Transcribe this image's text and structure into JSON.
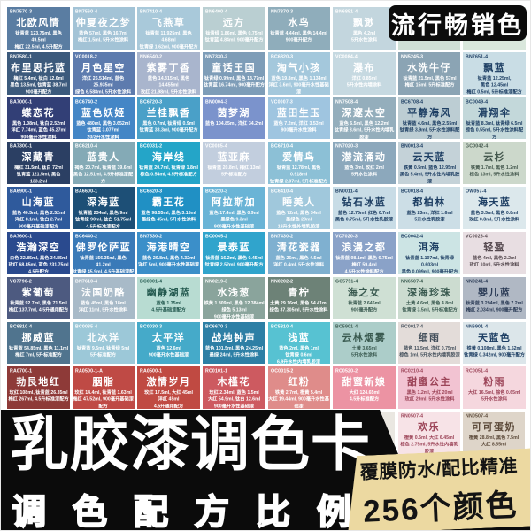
{
  "header_badge": {
    "label": "流行畅销色"
  },
  "footer": {
    "title": "乳胶漆调色卡",
    "subtitle": "调色配方比例",
    "ribbon_line1": "覆膜防水/配比精准",
    "ribbon_line2": "256个颜色"
  },
  "colors": {
    "banner_bg": "#0b0b0b",
    "ribbon_bg": "#ecd9a1",
    "card_bg": "#ffffff"
  },
  "grid_swatches": [
    {
      "code": "BN7570-3",
      "name": "北欧风情",
      "formula": "钛青蓝 123.75ml, 黑色 49.5ml\n梅红 22.5ml, 4.5升配方",
      "bg": "#5a7da2",
      "fg": "#ffffff"
    },
    {
      "code": "BN7560-4",
      "name": "仲夏夜之梦",
      "formula": "蓝色 57ml, 黑色 16.7ml\n梅红 1.5ml, 5升水性涂料",
      "bg": "#a3c3d6",
      "fg": "#ffffff"
    },
    {
      "code": "BN7410-4",
      "name": "飞燕草",
      "formula": "钛青蓝 11.925ml, 黑色 4.68ml\n钛青绿 1.62ml, 900毫升配方",
      "bg": "#a9c9da",
      "fg": "#ffffff"
    },
    {
      "code": "BN6400-4",
      "name": "远方",
      "formula": "钛青绿 1.86ml, 黑色 0.75ml\n钛青蓝 4.84ml, 900毫升配方",
      "bg": "#bacfd2",
      "fg": "#ffffff"
    },
    {
      "code": "NN7370-3",
      "name": "水鸟",
      "formula": "钛青蓝 4.44ml, 黑色 14.4ml\n900毫升配方",
      "bg": "#8fadbb",
      "fg": "#ffffff"
    },
    {
      "code": "BN6851-4",
      "name": "飘渺",
      "formula": "黑色 4.2ml\n5升水性涂料",
      "bg": "#c3d6de",
      "fg": "#ffffff"
    },
    {
      "code": "",
      "name": "",
      "formula": "5升水性涂料",
      "bg": "#cfe0d6",
      "fg": "#3a5a50",
      "push_bottom": true
    },
    {
      "code": "",
      "name": "",
      "formula": "钛青绿 10.25ml,\n900毫升基础漆配方",
      "bg": "#d9e7dc",
      "fg": "#3a5a50",
      "push_bottom": true
    },
    {
      "code": "BN7580-1",
      "name": "布里思托蓝",
      "formula": "梅红 5.4ml, 钛白 12.6ml\n黑色 13.5ml, 钛青蓝 38.7ml\n900毫升配方",
      "bg": "#3c5a7c",
      "fg": "#ffffff"
    },
    {
      "code": "VC0018-2",
      "name": "月色星空",
      "formula": "洋红 26.514ml, 蓝色 25.935ml\n绿色 6.588ml, 5升水性涂料",
      "bg": "#5d7bae",
      "fg": "#ffffff"
    },
    {
      "code": "NN6540-2",
      "name": "紫雾丁香",
      "formula": "蓝色 14.315ml, 黑色 14.455ml\n玫红 21.98ml, 5升水性涂料",
      "bg": "#a9b5cd",
      "fg": "#ffffff"
    },
    {
      "code": "NN7330-2",
      "name": "童话王国",
      "formula": "钛青绿 0.99ml, 黑色 13.77ml\n钛青蓝 16.74ml, 900毫升配方",
      "bg": "#7e9db8",
      "fg": "#ffffff"
    },
    {
      "code": "BC6820-3",
      "name": "淘气小孩",
      "formula": "蓝色 19.8ml, 黑色 1.134ml\n洋红 3.6ml, 900毫升水性基础漆",
      "bg": "#a4c8dc",
      "fg": "#ffffff"
    },
    {
      "code": "VC0084-4",
      "name": "瀑布",
      "formula": "洋红 0.85ml\n5升水性内墙涂料",
      "bg": "#c6d9e1",
      "fg": "#ffffff"
    },
    {
      "code": "NN5245-3",
      "name": "水洗牛仔",
      "formula": "钛青蓝 21.5ml, 黑色 57ml\n梅红 15ml, 5升标准配方",
      "bg": "#8ba4b4",
      "fg": "#ffffff"
    },
    {
      "code": "BN7651-4",
      "name": "飘蓝",
      "formula": "钛青蓝 12.25ml,\n黑色 12.45ml\n梅红 0.5ml, 5升标准漆配方",
      "bg": "#c9dde5",
      "fg": "#1d3e63"
    },
    {
      "code": "BA7000-1",
      "name": "蝶恋花",
      "formula": "黑色 1.08ml, 钛白 2.52ml\n洋红 7.74ml, 蓝色 45.27ml\n900毫升水性涂料",
      "bg": "#323f76",
      "fg": "#ffffff"
    },
    {
      "code": "BC6740-2",
      "name": "蓝色妖姬",
      "formula": "蓝色 480ml, 黑色 3.652ml\n钛青蓝 3.077ml\n20/2升水性涂料",
      "bg": "#4486c6",
      "fg": "#ffffff"
    },
    {
      "code": "BC6720-3",
      "name": "兰桂飘香",
      "formula": "黑色 0.7ml, 钛青绿 0.9ml\n钛青蓝 33.3ml, 900毫升配方",
      "bg": "#4aa0c8",
      "fg": "#ffffff"
    },
    {
      "code": "BN0004-3",
      "name": "茵梦湖",
      "formula": "蓝色 104.85ml, 洋红 34.2ml",
      "bg": "#7b93cc",
      "fg": "#ffffff"
    },
    {
      "code": "VC0007-3",
      "name": "蓝田生玉",
      "formula": "蓝色 7.2ml, 洋红 3.53ml\n900毫升水性涂料",
      "bg": "#9fc5e0",
      "fg": "#ffffff"
    },
    {
      "code": "NN7508-4",
      "name": "深邃太空",
      "formula": "蓝色 6.5ml, 黑色 12.2ml\n钛青绿 3.6ml, 5升水性内墙乳胶漆",
      "bg": "#94aebc",
      "fg": "#ffffff"
    },
    {
      "code": "BC6708-4",
      "name": "平静海风",
      "formula": "钛青蓝 4.6ml, 黑色 2.55ml\n钛青绿 3.9ml, 5升水性涂料配方",
      "bg": "#bccdd3",
      "fg": "#1d3e63"
    },
    {
      "code": "BC0049-4",
      "name": "滑翔伞",
      "formula": "钛青蓝 8.3ml, 钛青绿 6.5ml\n棕色 0.55ml, 5升水性涂料配方",
      "bg": "#c3d8da",
      "fg": "#1d3e63"
    },
    {
      "code": "BA7300-1",
      "name": "深藏青",
      "formula": "梅红 31.5ml, 钛白 72ml\n钛青蓝 121.5ml, 黑色 133.2ml\n4.5升标准配方",
      "bg": "#2b3f63",
      "fg": "#ffffff"
    },
    {
      "code": "BC6210-4",
      "name": "蓝贵人",
      "formula": "褐色 20.7ml, 钛青蓝 39.6ml\n黑色 12.51ml, 4.5升标准漆配方",
      "bg": "#84aab6",
      "fg": "#ffffff"
    },
    {
      "code": "BC0031-2",
      "name": "海岸线",
      "formula": "钛青蓝 20.7ml, 钛青绿 1.8ml\n棕色 0.54ml, 4.5升标准配方",
      "bg": "#24a5c8",
      "fg": "#ffffff"
    },
    {
      "code": "VC0085-4",
      "name": "蓝亚麻",
      "formula": "钛青蓝 20.8ml, 梅红 13ml\n5升标准配方",
      "bg": "#c2cede",
      "fg": "#ffffff"
    },
    {
      "code": "BC6710-4",
      "name": "爱情鸟",
      "formula": "钛青蓝 12.78ml, 黑色 0.918ml\n钛青绿 2.07ml, 5升标准配方",
      "bg": "#8cc0d6",
      "fg": "#ffffff"
    },
    {
      "code": "NN7020-3",
      "name": "潜流涌动",
      "formula": "蓝色 3ml, 玫红 2ml\n5升水性涂料",
      "bg": "#8ca8bc",
      "fg": "#ffffff"
    },
    {
      "code": "BN0013-4",
      "name": "云天蓝",
      "formula": "铁黄 0.5ml, 蓝色 12.95ml\n黑色 5.4ml, 5升水性内墙乳胶漆",
      "bg": "#c4d2d8",
      "fg": "#1d3e63"
    },
    {
      "code": "GC0042-4",
      "name": "云杉",
      "formula": "铁黄 1.7ml, 黑色 1.2ml\n棕色 13ml, 5升水性涂料",
      "bg": "#ccd8cb",
      "fg": "#44584e"
    },
    {
      "code": "BA6900-1",
      "name": "山海蓝",
      "formula": "蓝色 40.5ml, 黑色 2.52ml\n洋红 8.1ml, 钛白 2.7ml\n900毫升基础漆配方",
      "bg": "#2f5a9c",
      "fg": "#ffffff"
    },
    {
      "code": "BA6600-1",
      "name": "深海蓝",
      "formula": "钛青蓝 234ml, 黑色 9ml\n钛青绿 90ml, 钛白 51.75ml\n4.5升标准漆配方",
      "bg": "#1d4f76",
      "fg": "#ffffff"
    },
    {
      "code": "BC6620-3",
      "name": "霸王花",
      "formula": "蓝色 98.55ml, 黑色 3.15ml\n墨绿色 45ml, 5升水性涂料",
      "bg": "#2090c4",
      "fg": "#ffffff"
    },
    {
      "code": "BC6220-3",
      "name": "阿拉斯加",
      "formula": "蓝色 17.4ml, 黑色 0.9ml\n墨绿色 9.3ml\n900毫升水性基础漆",
      "bg": "#6ab4d6",
      "fg": "#ffffff"
    },
    {
      "code": "BC6410-4",
      "name": "睡美人",
      "formula": "蓝色 72ml, 黑色 34ml\n墨绿色 29ml\n18升水性外墙乳胶漆",
      "bg": "#a0c8dc",
      "fg": "#ffffff"
    },
    {
      "code": "BN0011-4",
      "name": "钻石冰蓝",
      "formula": "蓝色 12.75ml, 红色 0.7ml\n黑色 0.75ml, 5升水性乳胶漆",
      "bg": "#c8dce6",
      "fg": "#1d3e63"
    },
    {
      "code": "BC0018-4",
      "name": "都柏林",
      "formula": "蓝色 23ml, 洋红 1.6ml\n5升水性乳胶漆",
      "bg": "#ccdee6",
      "fg": "#1d3e63"
    },
    {
      "code": "OW057-4",
      "name": "海天蓝",
      "formula": "蓝色 3.5ml, 黑色 0.8ml\n玫红 0.8ml, 5升水性涂料",
      "bg": "#dce8ec",
      "fg": "#1d3e63"
    },
    {
      "code": "BA7600-1",
      "name": "浩瀚深空",
      "formula": "白色 32.85ml, 黑色 34.85ml\n玫红 68.85ml, 蓝色 231.75ml\n4.5升配方",
      "bg": "#2a4a8e",
      "fg": "#ffffff"
    },
    {
      "code": "BC6440-2",
      "name": "佛罗伦萨蓝",
      "formula": "钛青蓝 156.35ml, 黑色 41.2ml\n钛青绿 45.9ml, 4.5升基础漆配方",
      "bg": "#3a7ab8",
      "fg": "#ffffff"
    },
    {
      "code": "BN7530-2",
      "name": "海港晴空",
      "formula": "蓝色 20.8ml, 黑色 4.32ml\n洋红 5ml, 900毫升水性基础漆",
      "bg": "#3b8fc9",
      "fg": "#ffffff"
    },
    {
      "code": "BC0045-2",
      "name": "景泰蓝",
      "formula": "钛青蓝 16.2ml, 黑色 0.45ml\n钛青绿 2.52ml, 900毫升配方",
      "bg": "#30a4cc",
      "fg": "#ffffff"
    },
    {
      "code": "BN7430-2",
      "name": "清花瓷器",
      "formula": "蓝色 26ml, 黑色 4.5ml\n洋红 0.4ml, 5升水性涂料",
      "bg": "#7fb0d0",
      "fg": "#ffffff"
    },
    {
      "code": "VC7020-3",
      "name": "浪漫之都",
      "formula": "钛青蓝 98.1ml, 黑色 6.75ml\n梅红 59.4ml\n4.5升水性涂料配方",
      "bg": "#8aa2c8",
      "fg": "#ffffff"
    },
    {
      "code": "BC0042-4",
      "name": "洱海",
      "formula": "钛青蓝 1.107ml, 钛青绿 0.603ml\n黑色 0.099ml, 900毫升配方",
      "bg": "#cce4e4",
      "fg": "#1d3e63"
    },
    {
      "code": "VC0023-4",
      "name": "轻盈",
      "formula": "蓝色 4ml, 黑色 2.2ml\n玫红 10ml, 5升水性涂料",
      "bg": "#e8dee2",
      "fg": "#54484e"
    },
    {
      "code": "VC7790-2",
      "name": "紫葡萄",
      "formula": "钛青蓝 92.7ml, 黑色 71.5ml\n梅红 137.7ml, 4.5升通用配方",
      "bg": "#4d5a80",
      "fg": "#ffffff"
    },
    {
      "code": "BN7610-4",
      "name": "法国奶酪",
      "formula": "蓝色 45ml, 黑色 18ml\n洋红 11ml, 5升水性涂料",
      "bg": "#a8bac8",
      "fg": "#ffffff"
    },
    {
      "code": "BC0001-4",
      "name": "幽静湖蓝",
      "formula": "蓝色 1.35ml\n4.5升基础漆配方",
      "bg": "#b8dcd2",
      "fg": "#255a50"
    },
    {
      "code": "NN0219-3",
      "name": "水浅葱",
      "formula": "铁黄 1.809ml, 黑色 12.384ml\n绿色 5.13ml\n900毫升水性基础漆",
      "bg": "#8aa49c",
      "fg": "#ffffff"
    },
    {
      "code": "NN0202-2",
      "name": "青柠",
      "formula": "土黄 29.16ml, 黑色 54.41ml\n绿色 37.305ml, 5升水性涂料",
      "bg": "#6d8277",
      "fg": "#ffffff"
    },
    {
      "code": "GC5751-4",
      "name": "海之女",
      "formula": "钛青蓝 2.646ml\n900毫升配方",
      "bg": "#cfe0d4",
      "fg": "#3a5a50"
    },
    {
      "code": "NN6507-4",
      "name": "深海珍珠",
      "formula": "土黄 4.6ml, 黑色 4.8ml\n钛青绿 3.5ml, 5升标准配方",
      "bg": "#ccdcd0",
      "fg": "#3a5a50"
    },
    {
      "code": "NN0241-4",
      "name": "婴儿蓝",
      "formula": "钛青蓝 3.294ml, 黑色 7.2ml\n梅红 2.034ml, 900毫升配方",
      "bg": "#b0b8c4",
      "fg": "#2a3a55"
    },
    {
      "code": "BC6810-4",
      "name": "挪威蓝",
      "formula": "钛青蓝 54.85ml, 黑色 11.1ml\n梅红 7ml, 5升标准配方",
      "bg": "#50748e",
      "fg": "#ffffff"
    },
    {
      "code": "BC0035-4",
      "name": "北冰洋",
      "formula": "钛青蓝 9.5ml, 钛青绿 5ml\n5升标准配方",
      "bg": "#9cc8d8",
      "fg": "#ffffff"
    },
    {
      "code": "BC0030-3",
      "name": "太平洋",
      "formula": "蓝色 12.6ml\n900毫升水性基础漆",
      "bg": "#45aac9",
      "fg": "#ffffff"
    },
    {
      "code": "BC6670-3",
      "name": "战地钟声",
      "formula": "蓝色 101.5ml, 黑色 24.25ml\n墨绿 24ml, 5升水性涂料",
      "bg": "#2d7fa5",
      "fg": "#ffffff"
    },
    {
      "code": "BC5810-4",
      "name": "浅蓝",
      "formula": "蓝色 2ml, 黑色 1ml\n钛青绿 0.6ml\n6.9升水性内墙乳胶漆",
      "bg": "#57c2d2",
      "fg": "#ffffff"
    },
    {
      "code": "BC5901-4",
      "name": "云林烟雾",
      "formula": "土黄 3.65ml\n5升水性涂料",
      "bg": "#accdc9",
      "fg": "#3a5a50"
    },
    {
      "code": "RC0017-4",
      "name": "细雨",
      "formula": "蓝色 11.5ml, 洋红 0.75ml\n棕色 1ml, 5升水性内墙乳胶漆",
      "bg": "#e3dcd9",
      "fg": "#44505c"
    },
    {
      "code": "NN6901-4",
      "name": "天蓝色",
      "formula": "铁黄 0.108ml, 黑色 1.52ml\n钛青绿 0.342ml, 900毫升配方",
      "bg": "#dce6ea",
      "fg": "#1d3e63"
    },
    {
      "code": "RA0700-1",
      "name": "勃艮地红",
      "formula": "玫红 108ml, 钛青蓝 26.35ml\n梅红 267ml, 4.5升标准漆配方",
      "bg": "#8e3a38",
      "fg": "#ffffff"
    },
    {
      "code": "RA0500-1-A",
      "name": "胭脂",
      "formula": "玫红 14.4ml, 钛青蓝 1.63ml\n梅红 47.52ml, 900毫升基础漆配方",
      "bg": "#bf4a45",
      "fg": "#ffffff"
    },
    {
      "code": "RA0500-1",
      "name": "激情岁月",
      "formula": "玫红 17.5ml, 大红 45ml\n洋红 45ml\n4.5升通用配方",
      "bg": "#c04a42",
      "fg": "#ffffff"
    },
    {
      "code": "RC0101-1",
      "name": "木槿花",
      "formula": "玫红 2.34ml, 蓝色 1.5ml\n大红 54.9ml, 钛白 12.6ml\n900毫升水性基础漆",
      "bg": "#cd5a60",
      "fg": "#ffffff"
    },
    {
      "code": "OC0015-2",
      "name": "红粉",
      "formula": "铁黄 2.7ml, 橙黄 5.4ml\n大红 19.44ml, 900毫升水性基础漆",
      "bg": "#df8c8a",
      "fg": "#ffffff"
    },
    {
      "code": "RC0520-2",
      "name": "甜蜜新娘",
      "formula": "大红 124.65ml\n4.5升标准配方",
      "bg": "#ec93a3",
      "fg": "#ffffff"
    },
    {
      "code": "RC0210-4",
      "name": "甜蜜公主",
      "formula": "黑色 1.2ml, 大红 20ml\n玫红 29ml, 5升水性涂料",
      "bg": "#f2c3d2",
      "fg": "#9c4458"
    },
    {
      "code": "RC0051-4",
      "name": "粉雨",
      "formula": "大红 16.5ml, 棕色 0.65ml\n5升水性涂料",
      "bg": "#f5d7de",
      "fg": "#9c4458"
    }
  ],
  "bottom_swatches": [
    {
      "code": "",
      "name": "",
      "formula": "",
      "bg": "#eae7e1",
      "fg": "#777777"
    },
    {
      "code": "RN0507-4",
      "name": "欢乐",
      "formula": "橙黄 0.5ml, 大红 6.45ml\n棕色 2.75ml, 5升水性内墙乳胶漆",
      "bg": "#f7e3e7",
      "fg": "#9c4458"
    },
    {
      "code": "NN0507-4",
      "name": "可可蛋奶",
      "formula": "橙黄 28.8ml, 黑色 7.5ml\n大红 8.55ml",
      "bg": "#ded5c9",
      "fg": "#5c4a3a"
    }
  ]
}
